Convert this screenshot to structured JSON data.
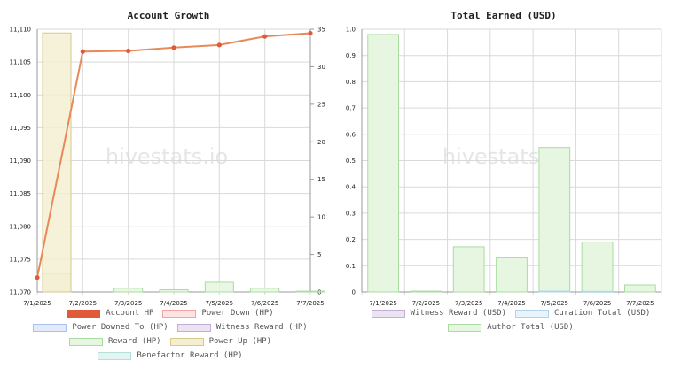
{
  "charts": {
    "left": {
      "title": "Account Growth",
      "watermark": "hivestats.io",
      "legend": [
        {
          "label": "Account HP",
          "fill": "#e05a3a",
          "border": "#e05a3a"
        },
        {
          "label": "Power Down (HP)",
          "fill": "#fde3e3",
          "border": "#f3a3a3"
        },
        {
          "label": "Power Downed To (HP)",
          "fill": "#e3ebfb",
          "border": "#a8bff0"
        },
        {
          "label": "Witness Reward (HP)",
          "fill": "#ece3f2",
          "border": "#c5aed6"
        },
        {
          "label": "Reward (HP)",
          "fill": "#e6f6e1",
          "border": "#a9dca0"
        },
        {
          "label": "Power Up (HP)",
          "fill": "#f5efd2",
          "border": "#d6c98b"
        },
        {
          "label": "Benefactor Reward (HP)",
          "fill": "#e3f4f2",
          "border": "#b3e0da"
        }
      ]
    },
    "right": {
      "title": "Total Earned (USD)",
      "watermark": "hivestats.io",
      "legend": [
        {
          "label": "Witness Reward (USD)",
          "fill": "#ece3f2",
          "border": "#c5aed6"
        },
        {
          "label": "Curation Total (USD)",
          "fill": "#e8f3fb",
          "border": "#b0d4ee"
        },
        {
          "label": "Author Total (USD)",
          "fill": "#e6f6e1",
          "border": "#a9dca0"
        }
      ]
    }
  },
  "chart_data": [
    {
      "type": "line",
      "title": "Account Growth",
      "categories": [
        "7/1/2025",
        "7/2/2025",
        "7/3/2025",
        "7/4/2025",
        "7/5/2025",
        "7/6/2025",
        "7/7/2025"
      ],
      "ylim_left": [
        11070,
        11110
      ],
      "yticks_left": [
        "11,070",
        "11,075",
        "11,080",
        "11,085",
        "11,090",
        "11,095",
        "11,100",
        "11,105",
        "11,110"
      ],
      "ylim_right": [
        0,
        35
      ],
      "yticks_right": [
        "0",
        "5",
        "10",
        "15",
        "20",
        "25",
        "30",
        "35"
      ],
      "grid": true,
      "legend_position": "bottom",
      "series": [
        {
          "name": "Account HP",
          "axis": "left",
          "kind": "line",
          "color": "#e8895a",
          "values": [
            11072.2,
            11106.6,
            11106.7,
            11107.2,
            11107.6,
            11108.9,
            11109.4
          ]
        },
        {
          "name": "Reward (HP)",
          "axis": "right",
          "kind": "bar",
          "color": "#e6f6e1",
          "values": [
            2.4,
            0,
            0.5,
            0.3,
            1.3,
            0.5,
            0.1
          ]
        },
        {
          "name": "Power Up (HP)",
          "axis": "right",
          "kind": "bar",
          "color": "#f5efd2",
          "values": [
            34.5,
            0,
            0,
            0,
            0,
            0,
            0
          ]
        }
      ]
    },
    {
      "type": "bar",
      "title": "Total Earned (USD)",
      "categories": [
        "7/1/2025",
        "7/2/2025",
        "7/3/2025",
        "7/4/2025",
        "7/5/2025",
        "7/6/2025",
        "7/7/2025"
      ],
      "ylim": [
        0,
        1.0
      ],
      "yticks": [
        "0",
        "0.1",
        "0.2",
        "0.3",
        "0.4",
        "0.5",
        "0.6",
        "0.7",
        "0.8",
        "0.9",
        "1.0"
      ],
      "grid": true,
      "legend_position": "bottom",
      "series": [
        {
          "name": "Author Total (USD)",
          "color": "#e6f6e1",
          "values": [
            0.98,
            0.003,
            0.172,
            0.13,
            0.55,
            0.19,
            0.027
          ]
        },
        {
          "name": "Curation Total (USD)",
          "color": "#e8f3fb",
          "values": [
            0,
            0,
            0,
            0,
            0.003,
            0.002,
            0
          ]
        }
      ]
    }
  ]
}
